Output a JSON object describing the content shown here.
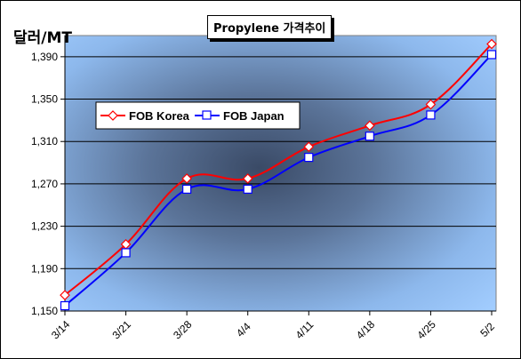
{
  "unit": "달러/MT",
  "chart_data": {
    "type": "line",
    "title": "Propylene 가격추이",
    "ylabel": "달러/MT",
    "xlabel": "",
    "categories": [
      "3/14",
      "3/21",
      "3/28",
      "4/4",
      "4/11",
      "4/18",
      "4/25",
      "5/2"
    ],
    "series": [
      {
        "name": "FOB Korea",
        "color": "#ff0000",
        "marker": "diamond",
        "values": [
          1165,
          1213,
          1275,
          1275,
          1305,
          1325,
          1345,
          1402
        ]
      },
      {
        "name": "FOB Japan",
        "color": "#0000ff",
        "marker": "square",
        "values": [
          1155,
          1205,
          1265,
          1265,
          1295,
          1315,
          1335,
          1392
        ]
      }
    ],
    "ylim": [
      1150,
      1410
    ],
    "yticks": [
      "1,150",
      "1,190",
      "1,230",
      "1,270",
      "1,310",
      "1,350",
      "1,390"
    ],
    "ytick_values": [
      1150,
      1190,
      1230,
      1270,
      1310,
      1350,
      1390
    ],
    "grid": "horizontal",
    "legend_position": "top-left",
    "plot_background": "radial gradient: #3a4a66 center to #99c6ff edges"
  }
}
